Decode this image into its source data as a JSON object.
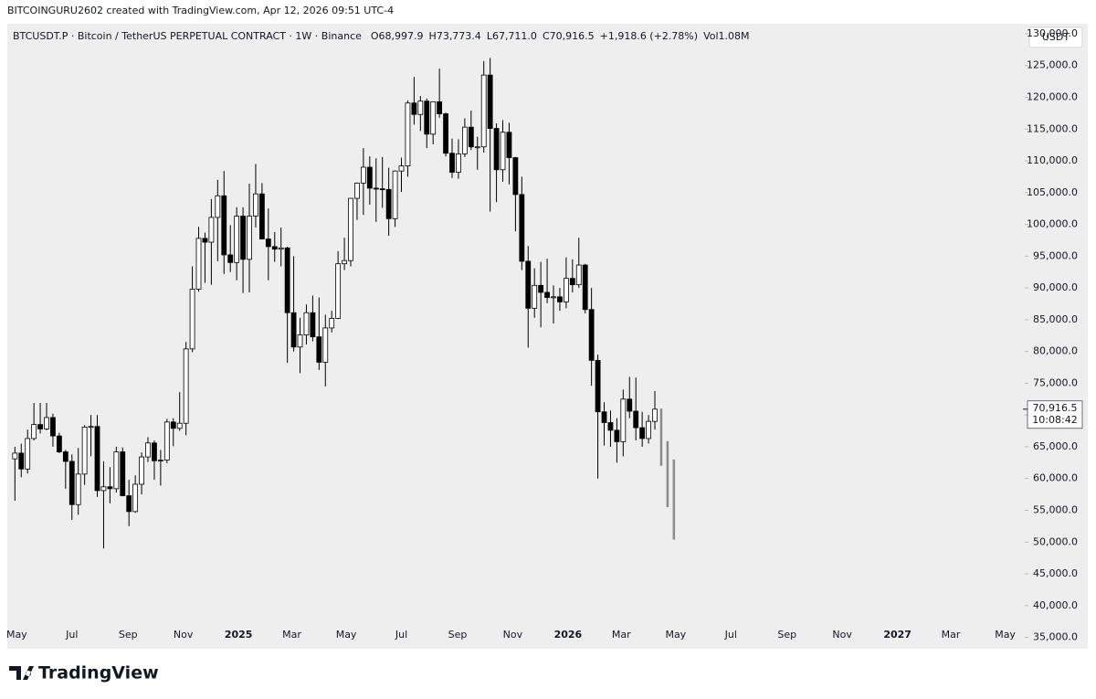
{
  "chart_data": {
    "type": "candlestick",
    "credit": "BITCOINGURU2602 created with TradingView.com, Apr 12, 2026 09:51 UTC-4",
    "title": "BTCUSDT.P · Bitcoin / TetherUS PERPETUAL CONTRACT · 1W · Binance",
    "legend_values": [
      "O68,997.9",
      "H73,773.4",
      "L67,711.0",
      "C70,916.5",
      "+1,918.6 (+2.78%)",
      "Vol1.08M"
    ],
    "currency": "USDT",
    "logo": "TradingView",
    "up_color": "#ffffff",
    "down_color": "#000000",
    "outline_color": "#000000",
    "projection_color": "#8a8a8a",
    "xlim": [
      -1.2,
      158.8
    ],
    "ylim": [
      33500,
      131000
    ],
    "xticks": [
      {
        "value": 0.29,
        "label": "May"
      },
      {
        "value": 9,
        "label": "Jul"
      },
      {
        "value": 17.86,
        "label": "Sep"
      },
      {
        "value": 26.57,
        "label": "Nov"
      },
      {
        "value": 35.29,
        "label": "2025"
      },
      {
        "value": 43.71,
        "label": "Mar"
      },
      {
        "value": 52.29,
        "label": "May"
      },
      {
        "value": 61,
        "label": "Jul"
      },
      {
        "value": 69.86,
        "label": "Sep"
      },
      {
        "value": 78.57,
        "label": "Nov"
      },
      {
        "value": 87.29,
        "label": "2026"
      },
      {
        "value": 95.71,
        "label": "Mar"
      },
      {
        "value": 104.29,
        "label": "May"
      },
      {
        "value": 113,
        "label": "Jul"
      },
      {
        "value": 121.86,
        "label": "Sep"
      },
      {
        "value": 130.57,
        "label": "Nov"
      },
      {
        "value": 139.29,
        "label": "2027"
      },
      {
        "value": 147.71,
        "label": "Mar"
      },
      {
        "value": 156.29,
        "label": "May"
      }
    ],
    "yticks": [
      {
        "value": 35000,
        "label": "35,000.0"
      },
      {
        "value": 40000,
        "label": "40,000.0"
      },
      {
        "value": 45000,
        "label": "45,000.0"
      },
      {
        "value": 50000,
        "label": "50,000.0"
      },
      {
        "value": 55000,
        "label": "55,000.0"
      },
      {
        "value": 60000,
        "label": "60,000.0"
      },
      {
        "value": 65000,
        "label": "65,000.0"
      },
      {
        "value": 70000,
        "label": "70,000.0"
      },
      {
        "value": 75000,
        "label": "75,000.0"
      },
      {
        "value": 80000,
        "label": "80,000.0"
      },
      {
        "value": 85000,
        "label": "85,000.0"
      },
      {
        "value": 90000,
        "label": "90,000.0"
      },
      {
        "value": 95000,
        "label": "95,000.0"
      },
      {
        "value": 100000,
        "label": "100,000.0"
      },
      {
        "value": 105000,
        "label": "105,000.0"
      },
      {
        "value": 110000,
        "label": "110,000.0"
      },
      {
        "value": 115000,
        "label": "115,000.0"
      },
      {
        "value": 120000,
        "label": "120,000.0"
      },
      {
        "value": 125000,
        "label": "125,000.0"
      },
      {
        "value": 130000,
        "label": "130,000.0"
      }
    ],
    "last_price": {
      "value": 70916.5,
      "label": "70,916.5"
    },
    "countdown": "10:08:42",
    "ohlc": {
      "open": [
        63100,
        64000,
        61500,
        66300,
        68500,
        67800,
        69600,
        66700,
        64200,
        62700,
        55900,
        60700,
        68100,
        68200,
        58100,
        58700,
        58400,
        64200,
        57300,
        54800,
        59100,
        63400,
        65600,
        62800,
        62900,
        68900,
        67900,
        68700,
        80400,
        89800,
        97800,
        97200,
        101100,
        104500,
        95200,
        94000,
        101300,
        94500,
        101300,
        104800,
        97700,
        96500,
        96100,
        96300,
        86100,
        80700,
        82600,
        86100,
        82300,
        78300,
        83700,
        85200,
        93800,
        94300,
        104100,
        106500,
        109000,
        105700,
        105600,
        105500,
        100900,
        108400,
        109200,
        119100,
        117300,
        119400,
        114200,
        119300,
        117400,
        111200,
        108200,
        111100,
        115300,
        112200,
        112200,
        123500,
        115100,
        108600,
        114500,
        110500,
        104700,
        94200,
        86800,
        90400,
        89300,
        88500,
        88600,
        87800,
        91500,
        90500,
        93600,
        86600,
        78600,
        70500,
        68800,
        67600,
        65800,
        72500,
        70600,
        68000,
        66300,
        68997.9
      ],
      "high": [
        65000,
        65500,
        67700,
        71900,
        71900,
        71900,
        70200,
        67200,
        64500,
        63800,
        64800,
        68400,
        70000,
        70000,
        62700,
        61800,
        65000,
        64900,
        59800,
        60500,
        64100,
        66500,
        66000,
        64500,
        69400,
        69500,
        73600,
        81500,
        93400,
        99600,
        98700,
        104000,
        107000,
        108400,
        99900,
        102700,
        102700,
        106400,
        109500,
        106500,
        102500,
        98800,
        99500,
        96500,
        95000,
        85300,
        87400,
        88800,
        88500,
        85800,
        86400,
        95800,
        97900,
        104100,
        106600,
        112000,
        110700,
        110400,
        110600,
        108900,
        108500,
        110500,
        119500,
        123200,
        120200,
        119800,
        119300,
        124500,
        117600,
        113500,
        113400,
        116700,
        117900,
        113800,
        125700,
        126200,
        115900,
        116400,
        116000,
        110600,
        107500,
        96600,
        93100,
        94100,
        94600,
        90400,
        90000,
        94800,
        94500,
        97900,
        93800,
        90000,
        79500,
        72000,
        70700,
        69500,
        74000,
        76000,
        75900,
        70500,
        70000,
        73773.4
      ],
      "low": [
        56500,
        60200,
        60800,
        66000,
        67100,
        67600,
        65000,
        64000,
        58400,
        53500,
        54300,
        59000,
        63500,
        57100,
        49000,
        56100,
        57800,
        57200,
        52500,
        54600,
        57500,
        62600,
        59800,
        58900,
        62400,
        65100,
        67500,
        66800,
        79900,
        89400,
        90800,
        90500,
        94200,
        92200,
        92500,
        91200,
        89200,
        89300,
        99500,
        97700,
        91200,
        94100,
        93400,
        78200,
        80000,
        76600,
        81100,
        81600,
        77100,
        74500,
        83000,
        85100,
        92800,
        93400,
        100700,
        101500,
        103100,
        100400,
        102600,
        98200,
        99600,
        105100,
        107500,
        115700,
        114700,
        112000,
        112600,
        116800,
        110700,
        107300,
        107200,
        110600,
        111700,
        108600,
        111300,
        102000,
        103500,
        106700,
        106300,
        98900,
        92800,
        80600,
        85300,
        83800,
        87600,
        84400,
        86400,
        86800,
        89300,
        90000,
        86000,
        74600,
        60000,
        65200,
        65000,
        62500,
        63500,
        69500,
        66000,
        65000,
        65500,
        67711.0
      ],
      "close": [
        64000,
        61500,
        66300,
        68500,
        67800,
        69600,
        66700,
        64200,
        62700,
        55900,
        60700,
        68100,
        68200,
        58100,
        58700,
        58400,
        64200,
        57300,
        54800,
        59100,
        63400,
        65600,
        62800,
        62900,
        68900,
        67900,
        68700,
        80400,
        89800,
        97800,
        97200,
        101100,
        104500,
        95200,
        94000,
        101300,
        94500,
        101300,
        104800,
        97700,
        96500,
        96100,
        96300,
        86100,
        80700,
        82600,
        86100,
        82300,
        78300,
        83700,
        85200,
        93800,
        94300,
        104100,
        106500,
        109000,
        105700,
        105600,
        105500,
        100900,
        108400,
        109200,
        119100,
        117300,
        119400,
        114200,
        119300,
        117400,
        111200,
        108200,
        111100,
        115300,
        112200,
        112200,
        123500,
        115100,
        108600,
        114500,
        110500,
        104700,
        94200,
        86800,
        90400,
        89300,
        88500,
        88600,
        87800,
        91500,
        90500,
        93600,
        86600,
        78600,
        70500,
        68800,
        67600,
        65800,
        72500,
        70600,
        68000,
        66300,
        69000,
        70916.5
      ]
    },
    "projection": {
      "high": [
        71000,
        65900,
        63000
      ],
      "low": [
        62000,
        55500,
        50400
      ]
    }
  }
}
